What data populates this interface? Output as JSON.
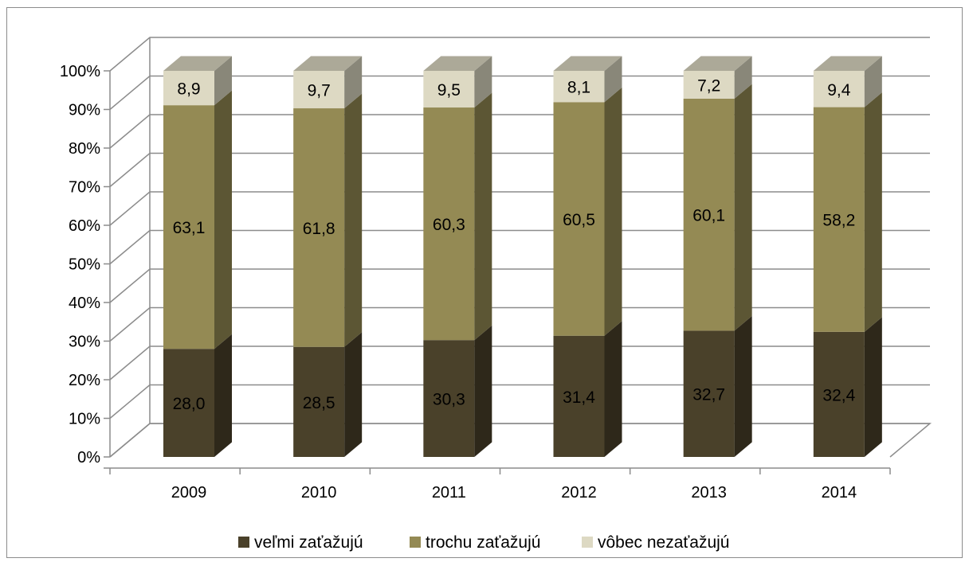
{
  "chart_data": {
    "type": "bar",
    "stacked": true,
    "percent_stacked": true,
    "three_d": true,
    "categories": [
      "2009",
      "2010",
      "2011",
      "2012",
      "2013",
      "2014"
    ],
    "series": [
      {
        "name": "veľmi zaťažujú",
        "values": [
          28.0,
          28.5,
          30.3,
          31.4,
          32.7,
          32.4
        ],
        "labels": [
          "28,0",
          "28,5",
          "30,3",
          "31,4",
          "32,7",
          "32,4"
        ],
        "color": "#4a412a"
      },
      {
        "name": "trochu zaťažujú",
        "values": [
          63.1,
          61.8,
          60.3,
          60.5,
          60.1,
          58.2
        ],
        "labels": [
          "63,1",
          "61,8",
          "60,3",
          "60,5",
          "60,1",
          "58,2"
        ],
        "color": "#948a54"
      },
      {
        "name": "vôbec nezaťažujú",
        "values": [
          8.9,
          9.7,
          9.5,
          8.1,
          7.2,
          9.4
        ],
        "labels": [
          "8,9",
          "9,7",
          "9,5",
          "8,1",
          "7,2",
          "9,4"
        ],
        "color": "#ddd9c3"
      }
    ],
    "y_ticks": [
      "0%",
      "10%",
      "20%",
      "30%",
      "40%",
      "50%",
      "60%",
      "70%",
      "80%",
      "90%",
      "100%"
    ],
    "ylim": [
      0,
      100
    ],
    "grid": true,
    "legend": "bottom",
    "title": "",
    "xlabel": "",
    "ylabel": ""
  }
}
